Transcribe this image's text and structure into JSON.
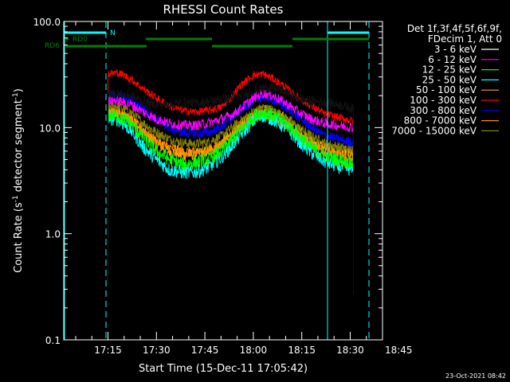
{
  "chart_data": {
    "type": "line",
    "title": "RHESSI Count Rates",
    "xlabel": "Start Time (15-Dec-11 17:05:42)",
    "ylabel_main": "Count Rate (s",
    "ylabel_sup1": "-1",
    "ylabel_mid": " detector segment",
    "ylabel_sup2": "-1",
    "ylabel_end": ")",
    "y_scale": "log",
    "ylim": [
      0.1,
      100
    ],
    "xlim_minutes": [
      1.3,
      100
    ],
    "x_ticks": [
      {
        "label": "17:15",
        "min": 15
      },
      {
        "label": "17:30",
        "min": 30
      },
      {
        "label": "17:45",
        "min": 45
      },
      {
        "label": "18:00",
        "min": 60
      },
      {
        "label": "18:15",
        "min": 75
      },
      {
        "label": "18:30",
        "min": 90
      },
      {
        "label": "18:45",
        "min": 105
      }
    ],
    "y_ticks": [
      {
        "label": "100.0",
        "v": 100
      },
      {
        "label": "10.0",
        "v": 10
      },
      {
        "label": "1.0",
        "v": 1
      },
      {
        "label": "0.1",
        "v": 0.1
      }
    ],
    "legend": {
      "header1": "Det 1f,3f,4f,5f,6f,9f,",
      "header2": "FDecim 1, Att 0",
      "position": "right"
    },
    "series": [
      {
        "name": "3 - 6 keV",
        "color": "#000000",
        "noise": 0.05,
        "points": [
          [
            15,
            21
          ],
          [
            18,
            21
          ],
          [
            22,
            20
          ],
          [
            26,
            17.5
          ],
          [
            30,
            16.5
          ],
          [
            34,
            16.5
          ],
          [
            38,
            17
          ],
          [
            42,
            17
          ],
          [
            46,
            17.5
          ],
          [
            50,
            18.5
          ],
          [
            53,
            19
          ],
          [
            56,
            19.5
          ],
          [
            60,
            22
          ],
          [
            64,
            24
          ],
          [
            68,
            23
          ],
          [
            72,
            20
          ],
          [
            76,
            18
          ],
          [
            80,
            17.5
          ],
          [
            84,
            17
          ],
          [
            88,
            16
          ],
          [
            91,
            15
          ]
        ]
      },
      {
        "name": "6 - 12 keV",
        "color": "#ff00ff",
        "noise": 0.05,
        "points": [
          [
            15,
            18
          ],
          [
            18,
            18
          ],
          [
            22,
            16.5
          ],
          [
            26,
            14
          ],
          [
            30,
            12
          ],
          [
            34,
            11
          ],
          [
            38,
            10.5
          ],
          [
            42,
            10.5
          ],
          [
            46,
            11
          ],
          [
            50,
            12
          ],
          [
            53,
            13
          ],
          [
            56,
            15
          ],
          [
            60,
            19
          ],
          [
            63,
            21
          ],
          [
            66,
            20
          ],
          [
            70,
            17
          ],
          [
            74,
            14
          ],
          [
            78,
            12
          ],
          [
            82,
            11
          ],
          [
            86,
            10.5
          ],
          [
            91,
            10
          ]
        ]
      },
      {
        "name": "12 - 25 keV",
        "color": "#00ff00",
        "noise": 0.07,
        "points": [
          [
            15,
            13
          ],
          [
            18,
            13
          ],
          [
            22,
            11
          ],
          [
            26,
            8
          ],
          [
            30,
            6
          ],
          [
            34,
            5
          ],
          [
            38,
            4.5
          ],
          [
            42,
            4.7
          ],
          [
            46,
            5
          ],
          [
            50,
            6
          ],
          [
            53,
            7.5
          ],
          [
            56,
            9.5
          ],
          [
            60,
            12.5
          ],
          [
            63,
            14
          ],
          [
            66,
            13
          ],
          [
            70,
            11
          ],
          [
            74,
            8.5
          ],
          [
            78,
            6.5
          ],
          [
            82,
            5.5
          ],
          [
            86,
            5
          ],
          [
            91,
            4.6
          ]
        ]
      },
      {
        "name": "25 - 50 keV",
        "color": "#00ffff",
        "noise": 0.07,
        "points": [
          [
            15,
            12
          ],
          [
            18,
            12
          ],
          [
            22,
            9.5
          ],
          [
            26,
            6.5
          ],
          [
            30,
            5
          ],
          [
            34,
            4
          ],
          [
            38,
            3.8
          ],
          [
            42,
            3.8
          ],
          [
            46,
            4.2
          ],
          [
            50,
            5.2
          ],
          [
            53,
            6.5
          ],
          [
            56,
            8.5
          ],
          [
            60,
            11.5
          ],
          [
            63,
            13
          ],
          [
            66,
            12
          ],
          [
            70,
            10
          ],
          [
            74,
            7.5
          ],
          [
            78,
            5.8
          ],
          [
            82,
            4.8
          ],
          [
            86,
            4.3
          ],
          [
            91,
            4
          ]
        ]
      },
      {
        "name": "50 - 100 keV",
        "color": "#ffa500",
        "noise": 0.06,
        "points": [
          [
            15,
            14
          ],
          [
            18,
            14
          ],
          [
            22,
            12
          ],
          [
            26,
            9
          ],
          [
            30,
            7
          ],
          [
            34,
            6
          ],
          [
            38,
            5.5
          ],
          [
            42,
            5.6
          ],
          [
            46,
            6
          ],
          [
            50,
            7
          ],
          [
            53,
            8.5
          ],
          [
            56,
            10.5
          ],
          [
            60,
            13.5
          ],
          [
            63,
            15
          ],
          [
            66,
            14
          ],
          [
            70,
            12
          ],
          [
            74,
            9.5
          ],
          [
            78,
            7.5
          ],
          [
            82,
            6.5
          ],
          [
            86,
            6
          ],
          [
            91,
            5.5
          ]
        ]
      },
      {
        "name": "100 - 300 keV",
        "color": "#ff0000",
        "noise": 0.04,
        "points": [
          [
            15,
            32
          ],
          [
            18,
            33
          ],
          [
            22,
            29
          ],
          [
            26,
            23
          ],
          [
            30,
            19
          ],
          [
            34,
            16
          ],
          [
            38,
            14.5
          ],
          [
            42,
            14
          ],
          [
            46,
            14.5
          ],
          [
            50,
            15.5
          ],
          [
            53,
            19
          ],
          [
            56,
            25
          ],
          [
            60,
            31
          ],
          [
            63,
            32
          ],
          [
            66,
            29
          ],
          [
            70,
            24
          ],
          [
            74,
            19
          ],
          [
            78,
            16
          ],
          [
            82,
            13.5
          ],
          [
            86,
            12.5
          ],
          [
            91,
            11.5
          ]
        ]
      },
      {
        "name": "300 - 800 keV",
        "color": "#0000ff",
        "noise": 0.05,
        "points": [
          [
            15,
            20
          ],
          [
            18,
            20
          ],
          [
            22,
            18
          ],
          [
            26,
            15
          ],
          [
            30,
            12
          ],
          [
            34,
            10
          ],
          [
            38,
            9
          ],
          [
            42,
            8.7
          ],
          [
            46,
            9
          ],
          [
            50,
            10
          ],
          [
            53,
            12
          ],
          [
            56,
            14.5
          ],
          [
            60,
            18
          ],
          [
            63,
            19.5
          ],
          [
            66,
            18.5
          ],
          [
            70,
            15.5
          ],
          [
            74,
            12.5
          ],
          [
            78,
            10
          ],
          [
            82,
            8.5
          ],
          [
            86,
            7.8
          ],
          [
            91,
            7.2
          ]
        ]
      },
      {
        "name": "800 - 7000 keV",
        "color": "#ff8c00",
        "noise": 0.05,
        "points": [
          [
            15,
            14
          ],
          [
            18,
            14
          ],
          [
            22,
            12
          ],
          [
            26,
            9.5
          ],
          [
            30,
            7.5
          ],
          [
            34,
            6.5
          ],
          [
            38,
            6
          ],
          [
            42,
            5.8
          ],
          [
            46,
            6
          ],
          [
            50,
            7
          ],
          [
            53,
            8.5
          ],
          [
            56,
            10
          ],
          [
            60,
            12.5
          ],
          [
            63,
            13.5
          ],
          [
            66,
            12.5
          ],
          [
            70,
            10.5
          ],
          [
            74,
            8.5
          ],
          [
            78,
            7
          ],
          [
            82,
            6
          ],
          [
            86,
            5.5
          ],
          [
            91,
            5
          ]
        ]
      },
      {
        "name": "7000 - 15000 keV",
        "color": "#808000",
        "noise": 0.05,
        "points": [
          [
            15,
            16
          ],
          [
            18,
            16
          ],
          [
            22,
            14
          ],
          [
            26,
            11
          ],
          [
            30,
            9
          ],
          [
            34,
            7.8
          ],
          [
            38,
            7.2
          ],
          [
            42,
            7
          ],
          [
            46,
            7.3
          ],
          [
            50,
            8.3
          ],
          [
            53,
            9.8
          ],
          [
            56,
            11.5
          ],
          [
            60,
            14
          ],
          [
            63,
            15.5
          ],
          [
            66,
            14.5
          ],
          [
            70,
            12.5
          ],
          [
            74,
            10
          ],
          [
            78,
            8.3
          ],
          [
            82,
            7.2
          ],
          [
            86,
            6.6
          ],
          [
            91,
            6.2
          ]
        ]
      }
    ],
    "attenuator_bars": [
      {
        "label": "RD0",
        "color": "#008000",
        "segments": []
      },
      {
        "label": "RD6",
        "color": "#008000",
        "segments": []
      }
    ],
    "flags": [
      {
        "label": "N",
        "color": "#00ffff"
      }
    ],
    "timestamp": "23-Oct-2021 08:42"
  }
}
